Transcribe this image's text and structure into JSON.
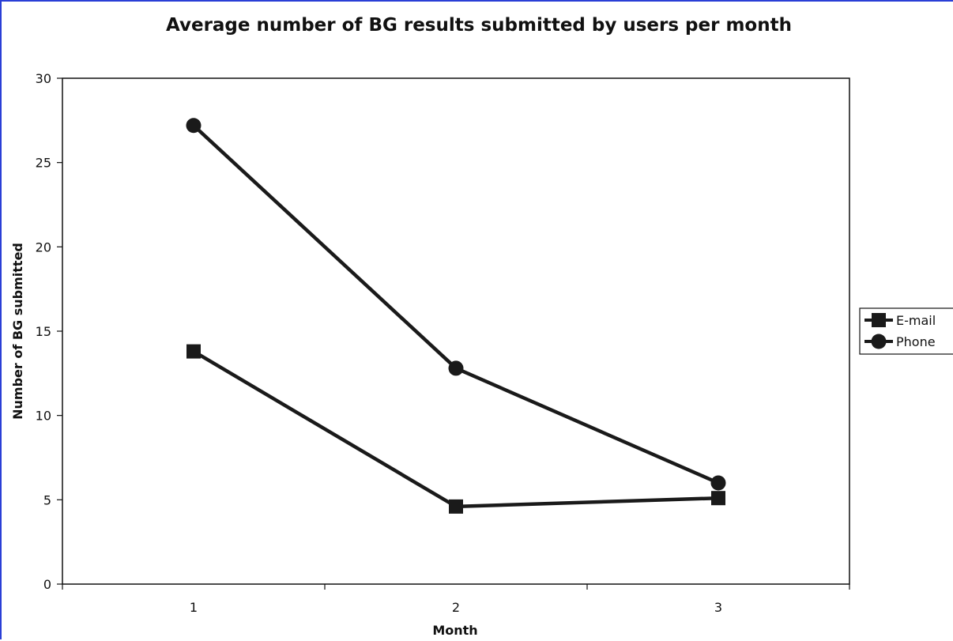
{
  "chart_data": {
    "type": "line",
    "title": "Average number of BG results submitted by users per month",
    "xlabel": "Month",
    "ylabel": "Number of BG submitted",
    "x": [
      1,
      2,
      3
    ],
    "x_tick_labels": [
      "1",
      "2",
      "3"
    ],
    "ylim": [
      0,
      30
    ],
    "y_ticks": [
      0,
      5,
      10,
      15,
      20,
      25,
      30
    ],
    "grid": false,
    "legend_position": "right",
    "series": [
      {
        "name": "E-mail",
        "marker": "square",
        "values": [
          13.8,
          4.6,
          5.1
        ]
      },
      {
        "name": "Phone",
        "marker": "circle",
        "values": [
          27.2,
          12.8,
          6.0
        ]
      }
    ],
    "colors": {
      "line": "#1a1a1a",
      "frame": "#2a3fd6"
    }
  }
}
